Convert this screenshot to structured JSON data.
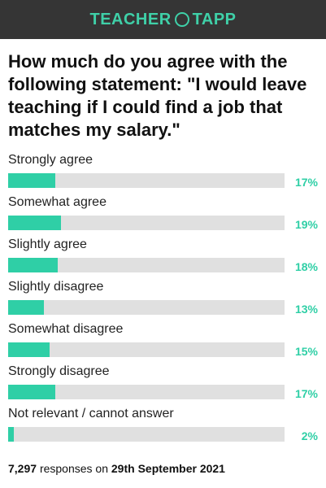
{
  "brand": {
    "left": "TEACHER",
    "right": "TAPP"
  },
  "chart_data": {
    "type": "bar",
    "title": "How much do you agree with the following statement: \"I would leave teaching if I could find a job that matches my salary.\"",
    "categories": [
      "Strongly agree",
      "Somewhat agree",
      "Slightly agree",
      "Slightly disagree",
      "Somewhat disagree",
      "Strongly disagree",
      "Not relevant / cannot answer"
    ],
    "values": [
      17,
      19,
      18,
      13,
      15,
      17,
      2
    ],
    "value_labels": [
      "17%",
      "19%",
      "18%",
      "13%",
      "15%",
      "17%",
      "2%"
    ],
    "color": "#2fcfa6",
    "xlim": [
      0,
      100
    ]
  },
  "footer": {
    "count": "7,297",
    "middle": "responses on",
    "date": "29th September 2021"
  }
}
